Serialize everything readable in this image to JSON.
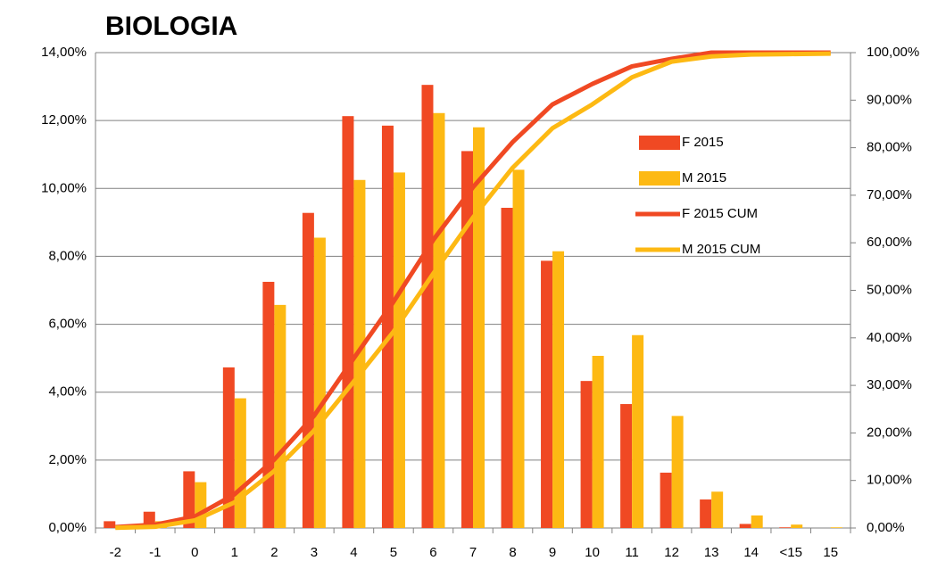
{
  "chart_data": {
    "type": "bar",
    "title": "BIOLOGIA",
    "categories": [
      "-2",
      "-1",
      "0",
      "1",
      "2",
      "3",
      "4",
      "5",
      "6",
      "7",
      "8",
      "9",
      "10",
      "11",
      "12",
      "13",
      "14",
      "<15",
      "15"
    ],
    "series": [
      {
        "name": "F 2015",
        "type": "bar",
        "color": "#f04923",
        "values": [
          0.2,
          0.48,
          1.67,
          4.73,
          7.25,
          9.28,
          12.13,
          11.85,
          13.05,
          11.1,
          9.43,
          7.87,
          4.33,
          3.65,
          1.63,
          0.84,
          0.12,
          0.02,
          0
        ]
      },
      {
        "name": "M 2015",
        "type": "bar",
        "color": "#fdb913",
        "values": [
          0.05,
          0.2,
          1.35,
          3.82,
          6.57,
          8.55,
          10.25,
          10.47,
          12.22,
          11.8,
          10.55,
          8.15,
          5.07,
          5.68,
          3.3,
          1.07,
          0.37,
          0.1,
          0.02
        ]
      },
      {
        "name": "F 2015 CUM",
        "type": "line",
        "axis": "y2",
        "color": "#f04923",
        "values": [
          0.2,
          0.7,
          2.4,
          7.1,
          14.4,
          23.6,
          35.7,
          47.6,
          60.6,
          71.7,
          81.2,
          89.1,
          93.4,
          97.1,
          98.7,
          100,
          100,
          100,
          100
        ]
      },
      {
        "name": "M 2015 CUM",
        "type": "line",
        "axis": "y2",
        "color": "#fdb913",
        "values": [
          0.05,
          0.25,
          1.6,
          5.4,
          12,
          20.5,
          30.8,
          41.3,
          53.5,
          65.3,
          75.8,
          84.1,
          89.1,
          94.8,
          98.1,
          99.2,
          99.6,
          99.7,
          99.8
        ]
      }
    ],
    "ylim": [
      0,
      14
    ],
    "yticks": [
      {
        "value": 0,
        "label": "0,00%"
      },
      {
        "value": 2,
        "label": "2,00%"
      },
      {
        "value": 4,
        "label": "4,00%"
      },
      {
        "value": 6,
        "label": "6,00%"
      },
      {
        "value": 8,
        "label": "8,00%"
      },
      {
        "value": 10,
        "label": "10,00%"
      },
      {
        "value": 12,
        "label": "12,00%"
      },
      {
        "value": 14,
        "label": "14,00%"
      }
    ],
    "y2lim": [
      0,
      100
    ],
    "y2ticks": [
      {
        "value": 0,
        "label": "0,00%"
      },
      {
        "value": 10,
        "label": "10,00%"
      },
      {
        "value": 20,
        "label": "20,00%"
      },
      {
        "value": 30,
        "label": "30,00%"
      },
      {
        "value": 40,
        "label": "40,00%"
      },
      {
        "value": 50,
        "label": "50,00%"
      },
      {
        "value": 60,
        "label": "60,00%"
      },
      {
        "value": 70,
        "label": "70,00%"
      },
      {
        "value": 80,
        "label": "80,00%"
      },
      {
        "value": 90,
        "label": "90,00%"
      },
      {
        "value": 100,
        "label": "100,00%"
      }
    ],
    "grid": true
  }
}
